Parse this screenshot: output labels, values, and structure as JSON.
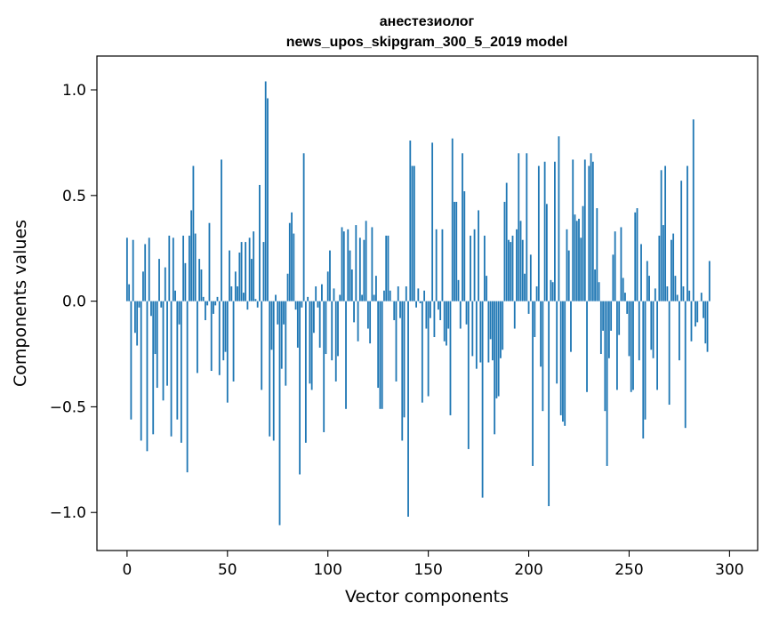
{
  "chart_data": {
    "type": "bar",
    "title": "анестезиолог",
    "subtitle": "news_upos_skipgram_300_5_2019 model",
    "xlabel": "Vector components",
    "ylabel": "Components values",
    "xlim": [
      -15,
      314
    ],
    "ylim": [
      -1.18,
      1.16
    ],
    "xticks": [
      0,
      50,
      100,
      150,
      200,
      250,
      300
    ],
    "xtick_labels": [
      "0",
      "50",
      "100",
      "150",
      "200",
      "250",
      "300"
    ],
    "yticks": [
      1.0,
      0.5,
      0.0,
      -0.5,
      -1.0
    ],
    "ytick_labels": [
      "1.0",
      "0.5",
      "0.0",
      "−0.5",
      "−1.0"
    ],
    "grid": false,
    "bar_color": "#1f77b4",
    "values": [
      0.3,
      0.08,
      -0.56,
      0.29,
      -0.15,
      -0.21,
      -0.03,
      -0.66,
      0.14,
      0.27,
      -0.71,
      0.3,
      -0.07,
      -0.63,
      -0.25,
      -0.41,
      0.2,
      -0.03,
      -0.47,
      0.16,
      -0.4,
      0.31,
      -0.64,
      0.3,
      0.05,
      -0.56,
      -0.11,
      -0.67,
      0.31,
      0.18,
      -0.81,
      0.31,
      0.43,
      0.64,
      0.32,
      -0.34,
      0.2,
      0.15,
      0.02,
      -0.09,
      -0.02,
      0.37,
      -0.33,
      -0.06,
      -0.02,
      0.02,
      -0.35,
      0.67,
      -0.28,
      -0.24,
      -0.48,
      0.24,
      0.07,
      -0.38,
      0.14,
      0.07,
      0.23,
      0.28,
      0.04,
      0.28,
      -0.04,
      0.3,
      0.2,
      0.33,
      0.01,
      -0.03,
      0.55,
      -0.42,
      0.28,
      1.04,
      0.96,
      -0.64,
      -0.23,
      -0.66,
      0.03,
      -0.11,
      -1.06,
      -0.32,
      -0.11,
      -0.4,
      0.13,
      0.37,
      0.42,
      0.32,
      -0.04,
      -0.22,
      -0.82,
      -0.03,
      0.7,
      -0.67,
      0.02,
      -0.39,
      -0.42,
      -0.15,
      0.07,
      -0.03,
      -0.22,
      0.08,
      -0.62,
      -0.25,
      0.14,
      0.24,
      -0.28,
      0.06,
      -0.38,
      -0.26,
      0.03,
      0.35,
      0.33,
      -0.51,
      0.34,
      0.24,
      0.15,
      -0.1,
      0.36,
      -0.19,
      0.3,
      0.03,
      0.29,
      0.38,
      -0.13,
      -0.2,
      0.35,
      0.03,
      0.12,
      -0.41,
      -0.51,
      -0.51,
      0.05,
      0.31,
      0.31,
      0.05,
      0.0,
      -0.09,
      -0.38,
      0.07,
      -0.08,
      -0.66,
      -0.55,
      0.07,
      -1.02,
      0.76,
      0.64,
      0.64,
      -0.03,
      0.06,
      -0.01,
      -0.48,
      0.05,
      -0.13,
      -0.45,
      -0.08,
      0.75,
      -0.17,
      0.34,
      -0.04,
      -0.09,
      0.34,
      -0.19,
      -0.21,
      -0.13,
      -0.54,
      0.77,
      0.47,
      0.47,
      0.1,
      -0.13,
      0.7,
      0.52,
      -0.11,
      -0.7,
      0.31,
      -0.26,
      0.34,
      -0.32,
      0.43,
      -0.29,
      -0.93,
      0.31,
      0.12,
      -0.29,
      -0.18,
      -0.28,
      -0.63,
      -0.46,
      -0.45,
      -0.27,
      -0.23,
      0.47,
      0.56,
      0.29,
      0.28,
      0.31,
      -0.13,
      0.34,
      0.7,
      0.38,
      0.29,
      0.13,
      0.7,
      -0.06,
      0.22,
      -0.78,
      -0.17,
      0.07,
      0.64,
      -0.31,
      -0.52,
      0.66,
      0.46,
      -0.97,
      0.1,
      0.09,
      0.66,
      -0.39,
      0.78,
      -0.54,
      -0.57,
      -0.59,
      0.34,
      0.24,
      -0.24,
      0.67,
      0.41,
      0.38,
      0.39,
      0.3,
      0.45,
      0.67,
      -0.43,
      0.64,
      0.7,
      0.66,
      0.15,
      0.44,
      0.09,
      -0.25,
      -0.14,
      -0.52,
      -0.78,
      -0.27,
      -0.14,
      0.22,
      0.33,
      -0.42,
      -0.16,
      0.35,
      0.11,
      0.04,
      -0.06,
      -0.26,
      -0.43,
      -0.42,
      0.42,
      0.44,
      -0.28,
      0.27,
      -0.65,
      -0.56,
      0.19,
      0.12,
      -0.23,
      -0.27,
      0.06,
      -0.42,
      0.31,
      0.62,
      0.36,
      0.64,
      0.07,
      -0.49,
      0.29,
      0.32,
      0.12,
      0.03,
      -0.28,
      0.57,
      0.07,
      -0.6,
      0.64,
      0.05,
      -0.19,
      0.86,
      -0.12,
      -0.1,
      0.0,
      0.04,
      -0.08,
      -0.2,
      -0.24,
      0.19
    ]
  }
}
